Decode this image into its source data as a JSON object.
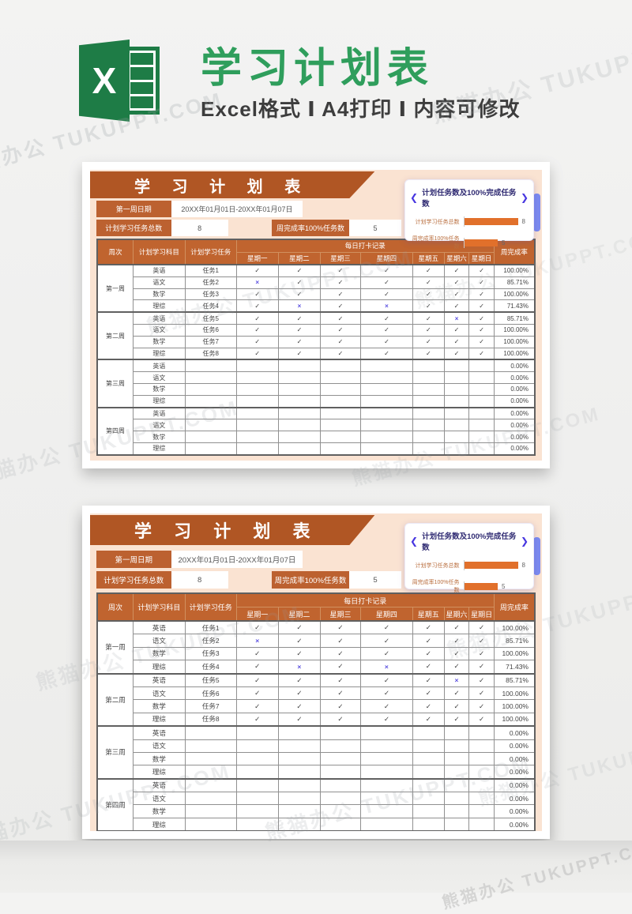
{
  "watermark": {
    "text": "熊猫办公 TUKUPPT.COM"
  },
  "colors": {
    "excel_green": "#1e7c46",
    "title_green": "#2f9e5c",
    "banner_orange": "#b05624",
    "table_header_orange": "#c0642f",
    "bar_orange": "#e1702b",
    "panel_purple": "#4736e0",
    "peach_background": "#fae3d2",
    "cross_blue": "#5a4fe0"
  },
  "header": {
    "logo_letter": "X",
    "title": "学习计划表",
    "subtitle": "Excel格式 Ⅰ A4打印 Ⅰ 内容可修改"
  },
  "sheet": {
    "banner_title": "学 习 计 划 表",
    "panel": {
      "chevron_left": "❮",
      "chevron_right": "❯",
      "title": "计划任务数及100%完成任务数",
      "axis_max": 8,
      "bars": [
        {
          "label": "计划学习任务总数",
          "value": 8
        },
        {
          "label": "周完成率100%任务数",
          "value": 5
        }
      ]
    },
    "fields": {
      "date_label": "第一周日期",
      "date_value": "20XX年01月01日-20XX年01月07日",
      "total_label": "计划学习任务总数",
      "total_value": "8",
      "complete_label": "周完成率100%任务数",
      "complete_value": "5"
    },
    "table": {
      "col_week": "周次",
      "col_subject": "计划学习科目",
      "col_task": "计划学习任务",
      "daily_header": "每日打卡记录",
      "col_rate": "周完成率",
      "days": [
        "星期一",
        "星期二",
        "星期三",
        "星期四",
        "星期五",
        "星期六",
        "星期日"
      ],
      "weeks": [
        {
          "name": "第一周",
          "rows": [
            {
              "subject": "英语",
              "task": "任务1",
              "days": [
                "✓",
                "✓",
                "✓",
                "✓",
                "✓",
                "✓",
                "✓"
              ],
              "rate": "100.00%"
            },
            {
              "subject": "语文",
              "task": "任务2",
              "days": [
                "×",
                "✓",
                "✓",
                "✓",
                "✓",
                "✓",
                "✓"
              ],
              "rate": "85.71%"
            },
            {
              "subject": "数学",
              "task": "任务3",
              "days": [
                "✓",
                "✓",
                "✓",
                "✓",
                "✓",
                "✓",
                "✓"
              ],
              "rate": "100.00%"
            },
            {
              "subject": "理综",
              "task": "任务4",
              "days": [
                "✓",
                "×",
                "✓",
                "×",
                "✓",
                "✓",
                "✓"
              ],
              "rate": "71.43%"
            }
          ]
        },
        {
          "name": "第二周",
          "rows": [
            {
              "subject": "英语",
              "task": "任务5",
              "days": [
                "✓",
                "✓",
                "✓",
                "✓",
                "✓",
                "×",
                "✓"
              ],
              "rate": "85.71%"
            },
            {
              "subject": "语文",
              "task": "任务6",
              "days": [
                "✓",
                "✓",
                "✓",
                "✓",
                "✓",
                "✓",
                "✓"
              ],
              "rate": "100.00%"
            },
            {
              "subject": "数学",
              "task": "任务7",
              "days": [
                "✓",
                "✓",
                "✓",
                "✓",
                "✓",
                "✓",
                "✓"
              ],
              "rate": "100.00%"
            },
            {
              "subject": "理综",
              "task": "任务8",
              "days": [
                "✓",
                "✓",
                "✓",
                "✓",
                "✓",
                "✓",
                "✓"
              ],
              "rate": "100.00%"
            }
          ]
        },
        {
          "name": "第三周",
          "rows": [
            {
              "subject": "英语",
              "task": "",
              "days": [
                "",
                "",
                "",
                "",
                "",
                "",
                ""
              ],
              "rate": "0.00%"
            },
            {
              "subject": "语文",
              "task": "",
              "days": [
                "",
                "",
                "",
                "",
                "",
                "",
                ""
              ],
              "rate": "0.00%"
            },
            {
              "subject": "数学",
              "task": "",
              "days": [
                "",
                "",
                "",
                "",
                "",
                "",
                ""
              ],
              "rate": "0.00%"
            },
            {
              "subject": "理综",
              "task": "",
              "days": [
                "",
                "",
                "",
                "",
                "",
                "",
                ""
              ],
              "rate": "0.00%"
            }
          ]
        },
        {
          "name": "第四周",
          "rows": [
            {
              "subject": "英语",
              "task": "",
              "days": [
                "",
                "",
                "",
                "",
                "",
                "",
                ""
              ],
              "rate": "0.00%"
            },
            {
              "subject": "语文",
              "task": "",
              "days": [
                "",
                "",
                "",
                "",
                "",
                "",
                ""
              ],
              "rate": "0.00%"
            },
            {
              "subject": "数学",
              "task": "",
              "days": [
                "",
                "",
                "",
                "",
                "",
                "",
                ""
              ],
              "rate": "0.00%"
            },
            {
              "subject": "理综",
              "task": "",
              "days": [
                "",
                "",
                "",
                "",
                "",
                "",
                ""
              ],
              "rate": "0.00%"
            }
          ]
        }
      ]
    }
  }
}
